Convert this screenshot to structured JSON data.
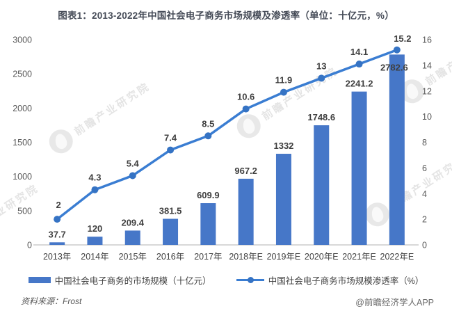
{
  "title": "图表1：2013-2022年中国社会电子商务市场规模及渗透率（单位：十亿元，%）",
  "source_label": "资料来源：Frost",
  "brand_label": "@前瞻经济学人APP",
  "watermark_text": "前瞻产业研究院",
  "colors": {
    "bar": "#4677c8",
    "line": "#3a7dd2",
    "marker": "#3573c4",
    "title_text": "#454b57",
    "axis_tick_text": "#595959",
    "x_label_text": "#404040",
    "data_label_text": "#3f3f3f",
    "baseline": "#cccccc"
  },
  "chart_data": {
    "type": "bar",
    "combo": "bar+line",
    "title": "2013-2022年中国社会电子商务市场规模及渗透率",
    "categories": [
      "2013年",
      "2014年",
      "2015年",
      "2016年",
      "2017年",
      "2018年E",
      "2019年E",
      "2020年E",
      "2021年E",
      "2022年E"
    ],
    "series": [
      {
        "name": "中国社会电子商务的市场规模（十亿元）",
        "type": "bar",
        "axis": "left",
        "values": [
          37.7,
          120,
          209.4,
          381.5,
          609.9,
          967.2,
          1332,
          1748.6,
          2241.2,
          2782.6
        ]
      },
      {
        "name": "中国社会电子商务市场规模渗透率（%）",
        "type": "line",
        "axis": "right",
        "values": [
          2,
          4.3,
          5.4,
          7.4,
          8.5,
          10.6,
          11.9,
          13,
          14.1,
          15.2
        ]
      }
    ],
    "left_axis": {
      "label": "十亿元",
      "min": 0,
      "max": 3000,
      "ticks": [
        0,
        500,
        1000,
        1500,
        2000,
        2500,
        3000
      ]
    },
    "right_axis": {
      "label": "%",
      "min": 0,
      "max": 16,
      "ticks": [
        0,
        2,
        4,
        6,
        8,
        10,
        12,
        14,
        16
      ]
    },
    "grid": false,
    "legend_position": "bottom",
    "data_labels": true
  }
}
